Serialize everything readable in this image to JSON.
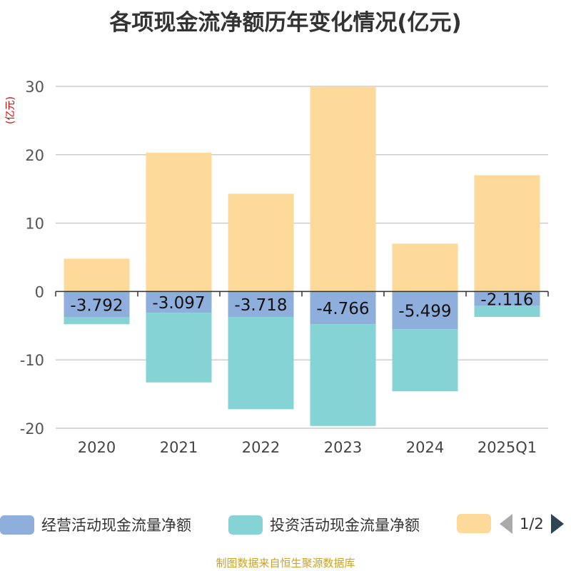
{
  "colors": {
    "operating": "#8eaedc",
    "investing": "#86d3d6",
    "financing": "#fdd99a"
  },
  "chart_data": {
    "type": "bar",
    "stacked": true,
    "title": "各项现金流净额历年变化情况(亿元)",
    "ylabel": "(亿元)",
    "ylim": [
      -20,
      30
    ],
    "yticks": [
      30,
      20,
      10,
      0,
      -10,
      -20
    ],
    "categories": [
      "2020",
      "2021",
      "2022",
      "2023",
      "2024",
      "2025Q1"
    ],
    "series": [
      {
        "name": "经营活动现金流量净额",
        "values": [
          -3.792,
          -3.097,
          -3.718,
          -4.766,
          -5.499,
          -2.116
        ],
        "labels": [
          "-3.792",
          "-3.097",
          "-3.718",
          "-4.766",
          "-5.499",
          "-2.116"
        ]
      },
      {
        "name": "投资活动现金流量净额",
        "values": [
          -1.0,
          -10.2,
          -13.5,
          -14.9,
          -9.1,
          -1.6
        ]
      },
      {
        "name": "",
        "values": [
          4.8,
          20.3,
          14.3,
          30.0,
          7.0,
          17.0
        ]
      }
    ]
  },
  "legend": {
    "items": [
      "经营活动现金流量净额",
      "投资活动现金流量净额",
      ""
    ],
    "page": "1/2"
  },
  "source": "制图数据来自恒生聚源数据库"
}
